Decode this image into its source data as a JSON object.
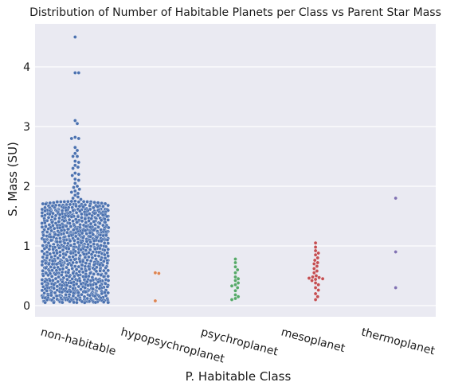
{
  "chart_data": {
    "type": "scatter",
    "style": "swarmplot",
    "title": "Distribution of Number of Habitable Planets per Class vs Parent Star Mass",
    "xlabel": "P. Habitable Class",
    "ylabel": "S. Mass (SU)",
    "ylim": [
      -0.2,
      4.75
    ],
    "yticks": [
      0,
      1,
      2,
      3,
      4
    ],
    "grid": true,
    "legend": "none",
    "categories": [
      "non-habitable",
      "hypopsychroplanet",
      "psychroplanet",
      "mesoplanet",
      "thermoplanet"
    ],
    "colors": [
      "#4c72b0",
      "#dd8452",
      "#55a868",
      "#c44e52",
      "#8172b3"
    ],
    "series": [
      {
        "values": [
          4.5,
          3.9,
          3.9,
          3.1,
          3.05,
          2.82,
          2.8,
          2.8,
          2.65,
          2.6,
          2.55,
          2.5,
          2.5,
          2.42,
          2.4,
          2.35,
          2.32,
          2.3,
          2.22,
          2.2,
          2.18,
          2.12,
          2.1,
          2.05,
          2.0,
          1.98,
          1.95,
          1.92,
          1.9,
          1.88,
          1.85,
          1.82,
          1.8,
          1.78,
          1.75
        ],
        "dense_band": {
          "from": 0.05,
          "to": 1.75,
          "count": 880
        }
      },
      {
        "values": [
          0.55,
          0.54,
          0.08
        ]
      },
      {
        "values": [
          0.78,
          0.72,
          0.65,
          0.6,
          0.55,
          0.48,
          0.45,
          0.42,
          0.38,
          0.35,
          0.33,
          0.3,
          0.25,
          0.18,
          0.15,
          0.12,
          0.1
        ]
      },
      {
        "values": [
          1.05,
          0.98,
          0.92,
          0.88,
          0.85,
          0.8,
          0.76,
          0.72,
          0.7,
          0.66,
          0.62,
          0.58,
          0.55,
          0.5,
          0.48,
          0.47,
          0.46,
          0.45,
          0.44,
          0.42,
          0.38,
          0.35,
          0.3,
          0.26,
          0.2,
          0.15,
          0.1
        ]
      },
      {
        "values": [
          1.8,
          0.9,
          0.3
        ]
      }
    ]
  }
}
